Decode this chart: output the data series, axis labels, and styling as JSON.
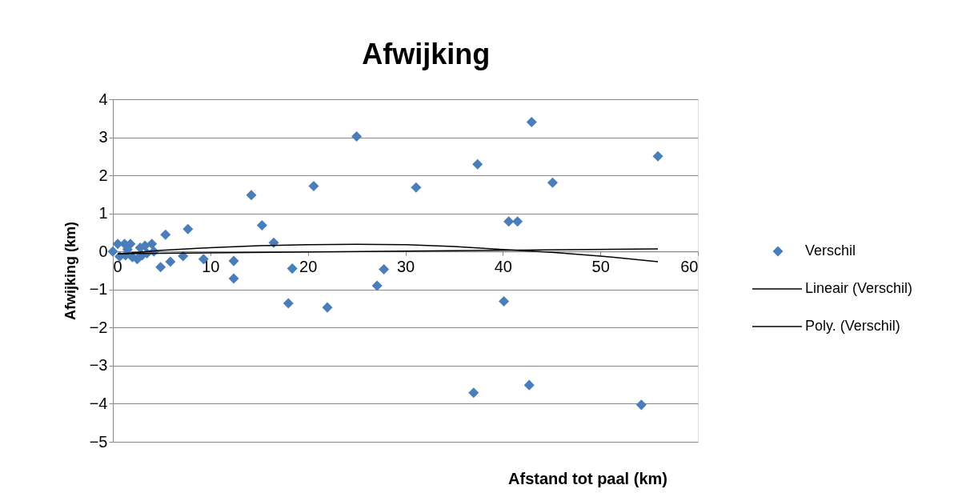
{
  "chart_data": {
    "type": "scatter",
    "title": "Afwijking",
    "xlabel": "Afstand tot paal (km)",
    "ylabel": "Afwijking (km)",
    "xlim": [
      0,
      60
    ],
    "xticks": [
      0,
      10,
      20,
      30,
      40,
      50,
      60
    ],
    "ylim": [
      -5,
      4
    ],
    "yticks": [
      -5,
      -4,
      -3,
      -2,
      -1,
      0,
      1,
      2,
      3,
      4
    ],
    "grid": "y",
    "legend": "right",
    "marker": "diamond",
    "series": [
      {
        "name": "Verschil",
        "color": "#4a7ebb",
        "x": [
          0,
          0.7,
          0.5,
          1.2,
          1.3,
          1.5,
          1.8,
          2.0,
          2.5,
          2.8,
          3.0,
          3.3,
          3.5,
          4.0,
          4.2,
          4.9,
          5.4,
          5.9,
          7.2,
          7.7,
          9.3,
          12.4,
          12.4,
          14.2,
          15.3,
          16.5,
          18.0,
          18.4,
          20.6,
          22.0,
          25.0,
          27.1,
          27.8,
          31.1,
          37.0,
          37.4,
          40.1,
          40.6,
          41.5,
          42.7,
          42.95,
          45.1,
          54.2,
          55.9
        ],
        "values": [
          0,
          -0.13,
          0.2,
          0.2,
          -0.1,
          0.05,
          0.2,
          -0.15,
          -0.2,
          0.1,
          -0.1,
          0.15,
          -0.05,
          0.2,
          0,
          -0.41,
          0.44,
          -0.27,
          -0.12,
          0.59,
          -0.2,
          -0.25,
          -0.71,
          1.48,
          0.69,
          0.23,
          -1.36,
          -0.45,
          1.72,
          -1.47,
          3.02,
          -0.9,
          -0.47,
          1.68,
          -3.71,
          2.29,
          -1.31,
          0.79,
          0.79,
          -3.51,
          3.4,
          1.81,
          -4.03,
          2.5
        ]
      },
      {
        "name": "Lineair (Verschil)",
        "type": "line",
        "marker": "none",
        "color": "#000000",
        "x": [
          0.5,
          55.9
        ],
        "values": [
          -0.06,
          0.07
        ]
      },
      {
        "name": "Poly. (Verschil)",
        "type": "line",
        "marker": "none",
        "color": "#000000",
        "x": [
          0.5,
          5,
          10,
          15,
          20,
          25,
          30,
          35,
          40,
          45,
          50,
          55.9
        ],
        "values": [
          -0.07,
          0.03,
          0.1,
          0.15,
          0.18,
          0.19,
          0.18,
          0.13,
          0.05,
          -0.02,
          -0.12,
          -0.27
        ]
      }
    ]
  }
}
